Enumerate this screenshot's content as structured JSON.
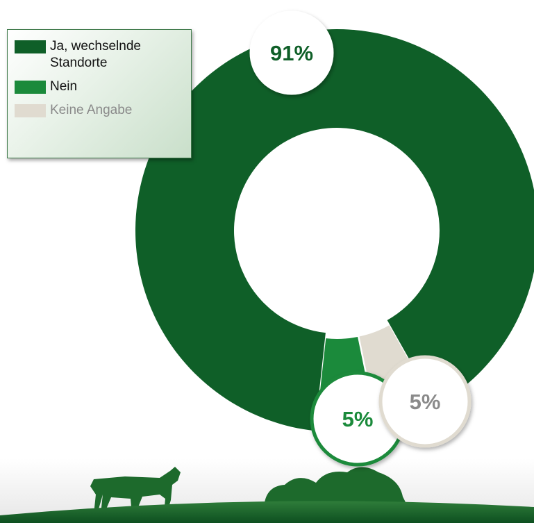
{
  "chart_data": {
    "type": "donut",
    "categories": [
      "Ja, wechselnde Standorte",
      "Nein",
      "Keine Angabe"
    ],
    "values": [
      91,
      5,
      5
    ],
    "value_labels": [
      "91%",
      "5%",
      "5%"
    ],
    "colors": [
      "#0f5f28",
      "#1b8a3b",
      "#e0dbd0"
    ],
    "label_colors": [
      "#0f5f28",
      "#1b8a3b",
      "#8a8a8a"
    ],
    "legend": "upper left"
  }
}
